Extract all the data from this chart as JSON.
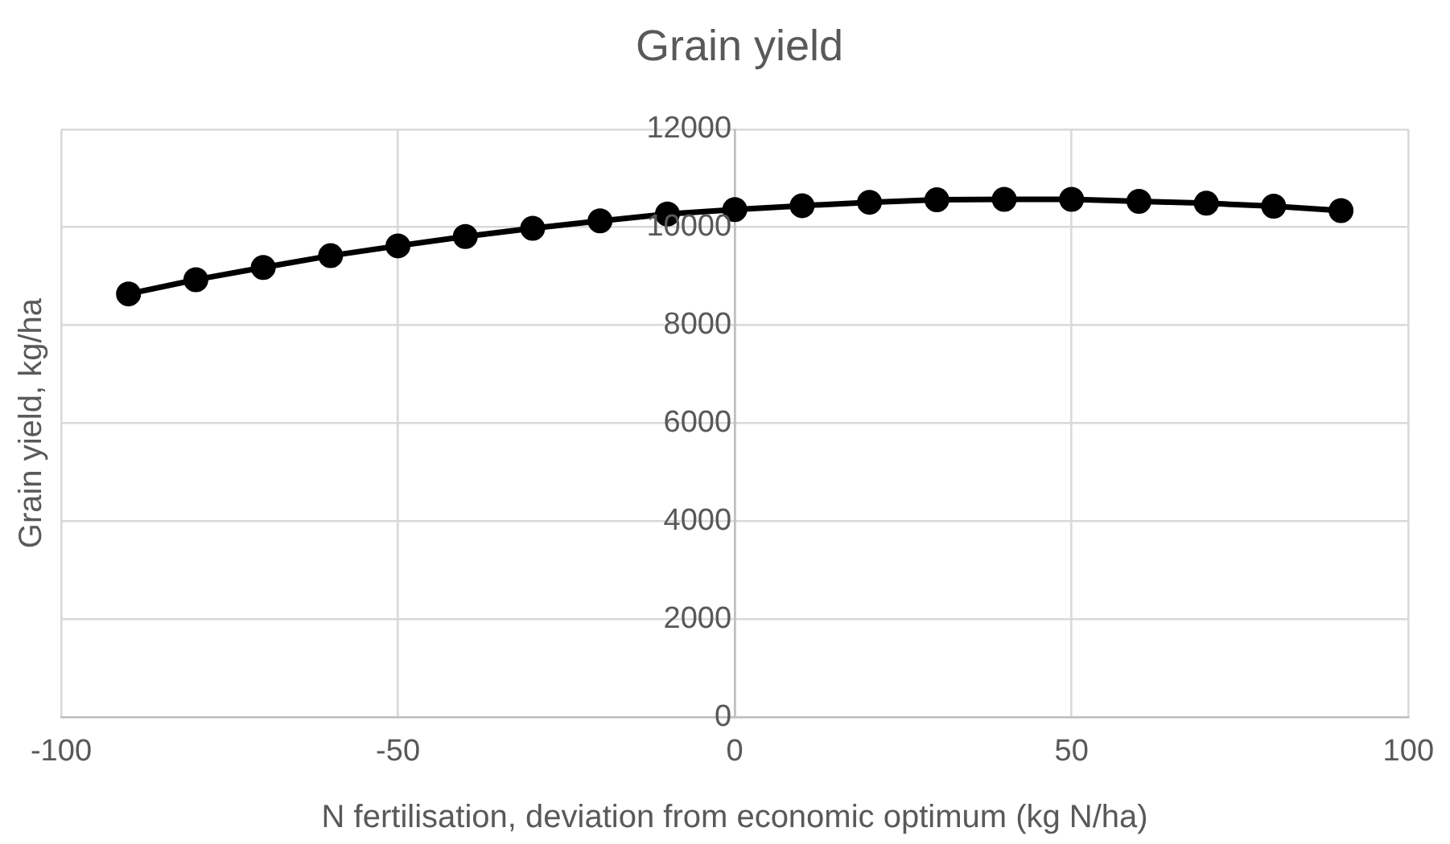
{
  "chart_data": {
    "type": "line",
    "title": "Grain yield",
    "xlabel": "N fertilisation, deviation from economic optimum (kg N/ha)",
    "ylabel": "Grain yield, kg/ha",
    "x": [
      -90,
      -80,
      -70,
      -60,
      -50,
      -40,
      -30,
      -20,
      -10,
      0,
      10,
      20,
      30,
      40,
      50,
      60,
      70,
      80,
      90
    ],
    "series": [
      {
        "color": "#000000",
        "values": [
          8640,
          8930,
          9180,
          9420,
          9620,
          9810,
          9980,
          10130,
          10270,
          10360,
          10440,
          10510,
          10560,
          10570,
          10570,
          10530,
          10490,
          10430,
          10340
        ]
      }
    ],
    "xlim": [
      -100,
      100
    ],
    "xticks": [
      -100,
      -50,
      0,
      50,
      100
    ],
    "ylim": [
      0,
      12000
    ],
    "yticks": [
      0,
      2000,
      4000,
      6000,
      8000,
      10000,
      12000
    ],
    "grid": true,
    "legend": false,
    "marker": "circle",
    "line_style": "solid"
  }
}
